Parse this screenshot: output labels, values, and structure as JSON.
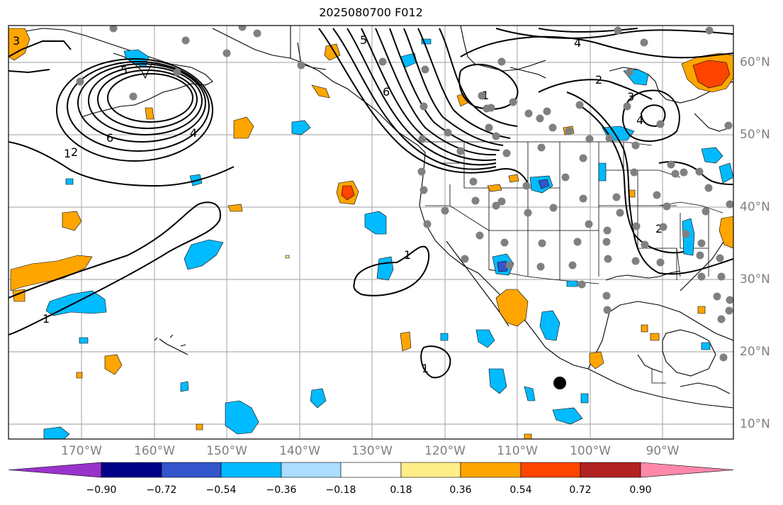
{
  "title": "2025080700 F012",
  "lon_labels": [
    "170°W",
    "160°W",
    "150°W",
    "140°W",
    "130°W",
    "120°W",
    "110°W",
    "100°W",
    "90°W"
  ],
  "lat_labels": [
    "60°N",
    "50°N",
    "40°N",
    "30°N",
    "20°N",
    "10°N"
  ],
  "colorbar": {
    "ticks": [
      "−0.90",
      "−0.72",
      "−0.54",
      "−0.36",
      "−0.18",
      "0.18",
      "0.36",
      "0.54",
      "0.72",
      "0.90"
    ],
    "colors": [
      "#9933cc",
      "#000088",
      "#3355cc",
      "#00bbff",
      "#aaddff",
      "#ffffff",
      "#ffee88",
      "#ffa500",
      "#ff4400",
      "#b22222",
      "#ff88aa"
    ]
  },
  "contour_labels": [
    "3",
    "5",
    "5",
    "6",
    "4",
    "1",
    "1",
    "6",
    "2",
    "2",
    "4",
    "2",
    "3",
    "4",
    "1",
    "1",
    "1"
  ],
  "colors": {
    "ocean": "#ffffff",
    "grid": "#b0b0b0",
    "stations": "#808080",
    "contour": "#000000"
  }
}
